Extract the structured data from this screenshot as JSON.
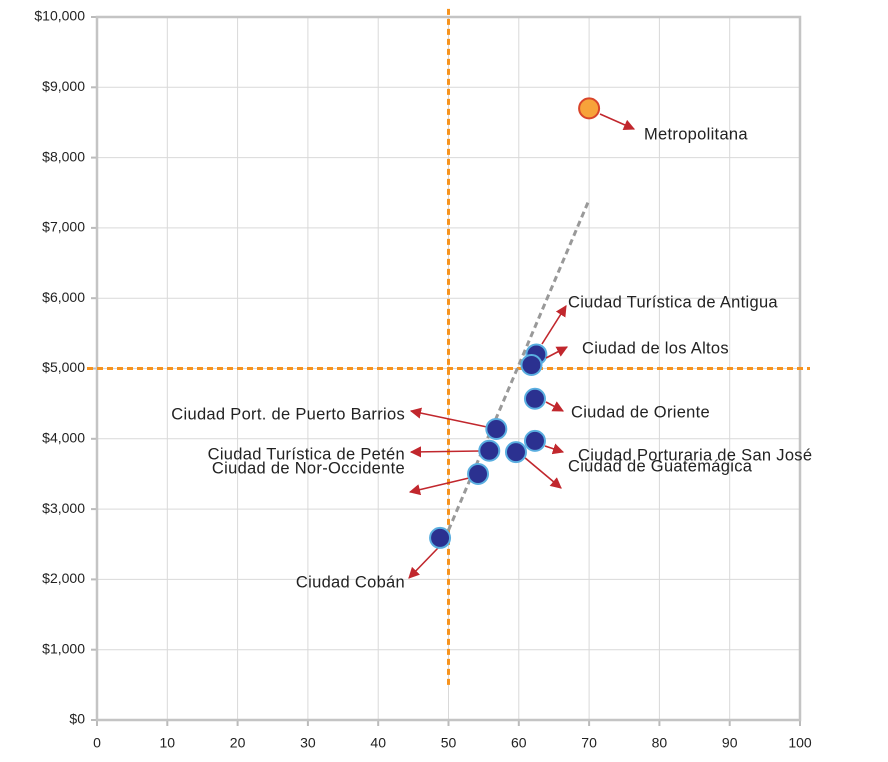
{
  "chart_data": {
    "type": "scatter",
    "x": [
      70,
      62.5,
      61.8,
      62.3,
      56.8,
      55.8,
      54.2,
      59.6,
      62.3,
      48.8
    ],
    "values": [
      8700,
      5200,
      5050,
      4570,
      4140,
      3830,
      3500,
      3810,
      3970,
      2590
    ],
    "point_labels": [
      "Metropolitana",
      "Ciudad Turística de Antigua",
      "Ciudad de los Altos",
      "Ciudad de Oriente",
      "Ciudad Port. de Puerto Barrios",
      "Ciudad Turística de Petén",
      "Ciudad de Nor-Occidente",
      "Ciudad de Guatemágica",
      "Ciudad Porturaria de San José",
      "Ciudad Cobán"
    ],
    "colors": [
      "#f7a33a",
      "#2b3190",
      "#2b3190",
      "#2b3190",
      "#2b3190",
      "#2b3190",
      "#2b3190",
      "#2b3190",
      "#2b3190",
      "#2b3190"
    ],
    "trendline": {
      "x": [
        50,
        70
      ],
      "values": [
        2700,
        7400
      ],
      "color": "#999999"
    },
    "reference_lines": {
      "x": 50,
      "y": 5000,
      "color": "#f7931e"
    },
    "xlim": [
      0,
      100
    ],
    "xticks": [
      0,
      10,
      20,
      30,
      40,
      50,
      60,
      70,
      80,
      90,
      100
    ],
    "ylim": [
      0,
      10000
    ],
    "yticks": [
      {
        "value": 0,
        "label": "$0"
      },
      {
        "value": 1000,
        "label": "$1,000"
      },
      {
        "value": 2000,
        "label": "$2,000"
      },
      {
        "value": 3000,
        "label": "$3,000"
      },
      {
        "value": 4000,
        "label": "$4,000"
      },
      {
        "value": 5000,
        "label": "$5,000"
      },
      {
        "value": 6000,
        "label": "$6,000"
      },
      {
        "value": 7000,
        "label": "$7,000"
      },
      {
        "value": 8000,
        "label": "$8,000"
      },
      {
        "value": 9000,
        "label": "$9,000"
      },
      {
        "value": 10000,
        "label": "$10,000"
      }
    ],
    "grid": true
  }
}
